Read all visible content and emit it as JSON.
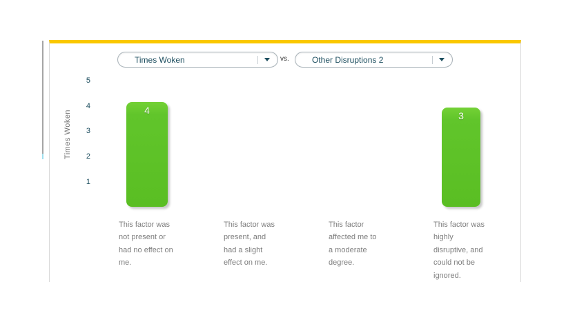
{
  "header": {
    "metric_selector_left": {
      "value": "Times Woken"
    },
    "vs_label": "vs.",
    "metric_selector_right": {
      "value": "Other Disruptions 2"
    }
  },
  "chart_data": {
    "type": "bar",
    "title": "",
    "ylabel": "Times Woken",
    "xlabel": "",
    "ylim": [
      0,
      5
    ],
    "yticks": [
      5,
      4,
      3,
      2,
      1
    ],
    "categories": [
      "This factor was\nnot present or\nhad no effect on\nme.",
      "This factor was\npresent, and\nhad a slight\neffect on me.",
      "This factor\naffected me to\na moderate\ndegree.",
      "This factor was\nhighly\ndisruptive, and\ncould not be\nignored."
    ],
    "values": [
      4,
      null,
      null,
      3
    ],
    "grid": false,
    "legend": false,
    "bar_color": "#61c52b",
    "accent_color": "#fac800"
  }
}
